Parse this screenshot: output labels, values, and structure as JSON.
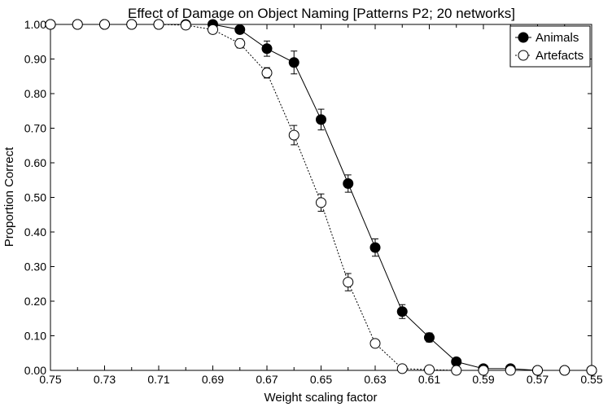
{
  "chart_data": {
    "type": "line",
    "title": "Effect of Damage on Object Naming [Patterns P2; 20 networks]",
    "xlabel": "Weight scaling factor",
    "ylabel": "Proportion Correct",
    "xlim": [
      0.75,
      0.55
    ],
    "ylim": [
      0,
      1
    ],
    "x_reversed": true,
    "x_ticks": [
      "0.75",
      "0.73",
      "0.71",
      "0.69",
      "0.67",
      "0.65",
      "0.63",
      "0.61",
      "0.59",
      "0.57",
      "0.55"
    ],
    "y_ticks": [
      "0.00",
      "0.10",
      "0.20",
      "0.30",
      "0.40",
      "0.50",
      "0.60",
      "0.70",
      "0.80",
      "0.90",
      "1.00"
    ],
    "grid": false,
    "legend_position": "top-right",
    "x": [
      0.75,
      0.74,
      0.73,
      0.72,
      0.71,
      0.7,
      0.69,
      0.68,
      0.67,
      0.66,
      0.65,
      0.64,
      0.63,
      0.62,
      0.61,
      0.6,
      0.59,
      0.58,
      0.57,
      0.56,
      0.55
    ],
    "series": [
      {
        "name": "Animals",
        "marker": "filled-circle",
        "line_style": "solid",
        "values": [
          1.0,
          1.0,
          1.0,
          1.0,
          1.0,
          1.0,
          1.0,
          0.985,
          0.93,
          0.89,
          0.725,
          0.54,
          0.355,
          0.17,
          0.095,
          0.025,
          0.005,
          0.005,
          0.0,
          0.0,
          0.0
        ],
        "errors": [
          0,
          0,
          0,
          0,
          0,
          0,
          0.004,
          0.006,
          0.022,
          0.033,
          0.03,
          0.025,
          0.025,
          0.02,
          0.013,
          0.004,
          0.002,
          0.002,
          0,
          0,
          0
        ]
      },
      {
        "name": "Artefacts",
        "marker": "open-circle",
        "line_style": "dotted",
        "values": [
          1.0,
          1.0,
          1.0,
          1.0,
          1.0,
          0.998,
          0.985,
          0.945,
          0.86,
          0.68,
          0.485,
          0.255,
          0.078,
          0.005,
          0.002,
          0.0,
          0.0,
          0.0,
          0.0,
          0.0,
          0.0
        ],
        "errors": [
          0,
          0,
          0,
          0,
          0,
          0.003,
          0.01,
          0.013,
          0.015,
          0.028,
          0.025,
          0.025,
          0.01,
          0.003,
          0.002,
          0,
          0,
          0,
          0,
          0,
          0
        ]
      }
    ]
  }
}
